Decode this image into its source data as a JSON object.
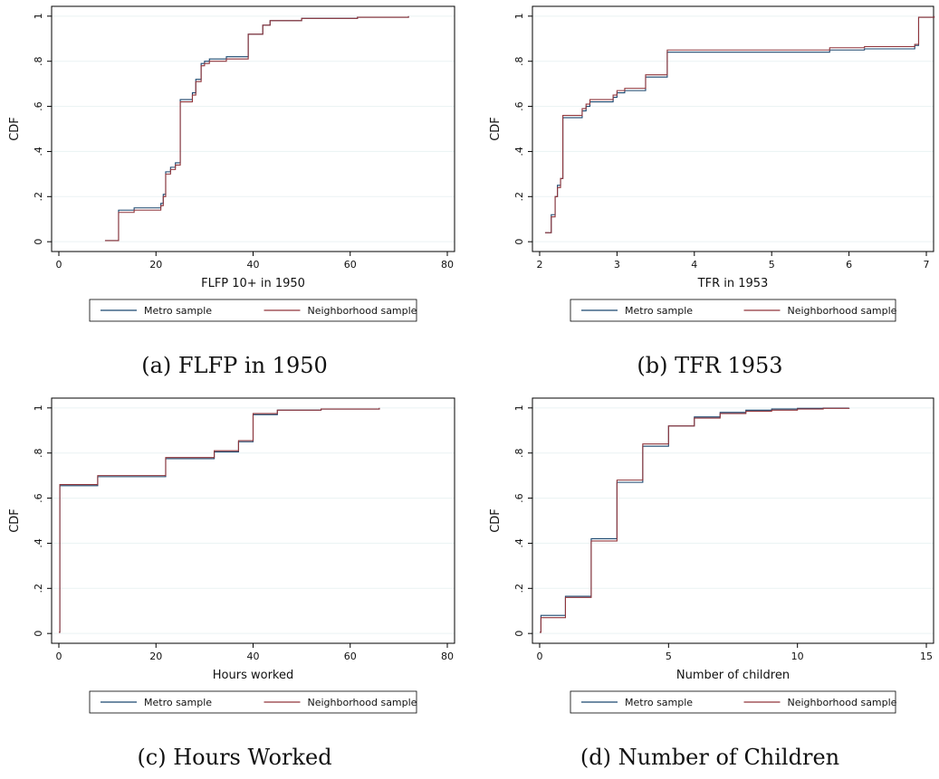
{
  "captions": [
    "(a) FLFP in 1950",
    "(b) TFR 1953",
    "(c) Hours Worked",
    "(d) Number of Children"
  ],
  "chart_data": [
    {
      "type": "line",
      "xlabel": "FLFP 10+ in 1950",
      "ylabel": "CDF",
      "xlim": [
        0,
        80
      ],
      "ylim": [
        0,
        1
      ],
      "xticks": [
        0,
        20,
        40,
        60,
        80
      ],
      "xticklabels": [
        "0",
        "20",
        "40",
        "60",
        "80"
      ],
      "yticks": [
        0,
        0.2,
        0.4,
        0.6,
        0.8,
        1
      ],
      "yticklabels": [
        "0",
        ".2",
        ".4",
        ".6",
        ".8",
        "1"
      ],
      "grid": true,
      "legend_position": "bottom",
      "series": [
        {
          "name": "Metro sample",
          "color": "#1a476f",
          "x": [
            9.5,
            12.3,
            12.3,
            15.5,
            21.0,
            21.5,
            22.0,
            23.0,
            24.0,
            24.5,
            25.0,
            25.5,
            27.5,
            28.2,
            29.3,
            30.0,
            31.0,
            34.5,
            39.0,
            40.5,
            42.0,
            43.5,
            50.0,
            61.5,
            72.0
          ],
          "y": [
            0.005,
            0.14,
            0.14,
            0.15,
            0.17,
            0.21,
            0.31,
            0.33,
            0.35,
            0.35,
            0.63,
            0.63,
            0.66,
            0.72,
            0.79,
            0.8,
            0.81,
            0.82,
            0.92,
            0.92,
            0.96,
            0.98,
            0.99,
            0.995,
            1.0
          ]
        },
        {
          "name": "Neighborhood sample",
          "color": "#90353b",
          "x": [
            9.5,
            12.3,
            12.3,
            15.5,
            21.0,
            21.5,
            22.0,
            23.0,
            24.0,
            24.5,
            25.0,
            25.5,
            27.5,
            28.2,
            29.3,
            30.0,
            31.0,
            34.5,
            39.0,
            40.5,
            42.0,
            43.5,
            50.0,
            61.5,
            72.0
          ],
          "y": [
            0.005,
            0.13,
            0.13,
            0.14,
            0.16,
            0.2,
            0.3,
            0.32,
            0.34,
            0.34,
            0.62,
            0.62,
            0.65,
            0.71,
            0.78,
            0.79,
            0.8,
            0.81,
            0.92,
            0.92,
            0.96,
            0.98,
            0.99,
            0.995,
            1.0
          ]
        }
      ]
    },
    {
      "type": "line",
      "xlabel": "TFR in 1953",
      "ylabel": "CDF",
      "xlim": [
        2,
        7
      ],
      "ylim": [
        0,
        1
      ],
      "xticks": [
        2,
        3,
        4,
        5,
        6,
        7
      ],
      "xticklabels": [
        "2",
        "3",
        "4",
        "5",
        "6",
        "7"
      ],
      "yticks": [
        0,
        0.2,
        0.4,
        0.6,
        0.8,
        1
      ],
      "yticklabels": [
        "0",
        ".2",
        ".4",
        ".6",
        ".8",
        "1"
      ],
      "grid": true,
      "legend_position": "bottom",
      "series": [
        {
          "name": "Metro sample",
          "color": "#1a476f",
          "x": [
            2.07,
            2.15,
            2.2,
            2.23,
            2.27,
            2.3,
            2.35,
            2.55,
            2.6,
            2.65,
            2.75,
            2.95,
            3.0,
            3.1,
            3.37,
            3.65,
            4.0,
            5.75,
            6.2,
            6.85,
            6.9,
            7.1
          ],
          "y": [
            0.04,
            0.12,
            0.2,
            0.25,
            0.28,
            0.55,
            0.55,
            0.58,
            0.6,
            0.62,
            0.62,
            0.64,
            0.66,
            0.67,
            0.73,
            0.84,
            0.84,
            0.85,
            0.855,
            0.87,
            0.995,
            1.0
          ]
        },
        {
          "name": "Neighborhood sample",
          "color": "#90353b",
          "x": [
            2.07,
            2.15,
            2.2,
            2.23,
            2.27,
            2.3,
            2.35,
            2.55,
            2.6,
            2.65,
            2.75,
            2.95,
            3.0,
            3.1,
            3.37,
            3.65,
            4.0,
            5.75,
            6.2,
            6.85,
            6.9,
            7.1
          ],
          "y": [
            0.04,
            0.11,
            0.2,
            0.24,
            0.28,
            0.56,
            0.56,
            0.59,
            0.61,
            0.63,
            0.63,
            0.65,
            0.67,
            0.68,
            0.74,
            0.85,
            0.85,
            0.86,
            0.865,
            0.875,
            0.995,
            1.0
          ]
        }
      ]
    },
    {
      "type": "line",
      "xlabel": "Hours worked",
      "ylabel": "CDF",
      "xlim": [
        0,
        80
      ],
      "ylim": [
        0,
        1
      ],
      "xticks": [
        0,
        20,
        40,
        60,
        80
      ],
      "xticklabels": [
        "0",
        "20",
        "40",
        "60",
        "80"
      ],
      "yticks": [
        0,
        0.2,
        0.4,
        0.6,
        0.8,
        1
      ],
      "yticklabels": [
        "0",
        ".2",
        ".4",
        ".6",
        ".8",
        "1"
      ],
      "grid": true,
      "legend_position": "bottom",
      "series": [
        {
          "name": "Metro sample",
          "color": "#1a476f",
          "x": [
            0,
            0.2,
            8,
            22,
            32,
            37,
            40,
            45,
            54,
            66
          ],
          "y": [
            0.005,
            0.655,
            0.695,
            0.775,
            0.805,
            0.85,
            0.97,
            0.99,
            0.995,
            1.0
          ]
        },
        {
          "name": "Neighborhood sample",
          "color": "#90353b",
          "x": [
            0,
            0.2,
            8,
            22,
            32,
            37,
            40,
            45,
            54,
            66
          ],
          "y": [
            0.005,
            0.66,
            0.7,
            0.78,
            0.81,
            0.855,
            0.975,
            0.99,
            0.995,
            1.0
          ]
        }
      ]
    },
    {
      "type": "line",
      "xlabel": "Number of children",
      "ylabel": "CDF",
      "xlim": [
        0,
        15
      ],
      "ylim": [
        0,
        1
      ],
      "xticks": [
        0,
        5,
        10,
        15
      ],
      "xticklabels": [
        "0",
        "5",
        "10",
        "15"
      ],
      "yticks": [
        0,
        0.2,
        0.4,
        0.6,
        0.8,
        1
      ],
      "yticklabels": [
        "0",
        ".2",
        ".4",
        ".6",
        ".8",
        "1"
      ],
      "grid": true,
      "legend_position": "bottom",
      "series": [
        {
          "name": "Metro sample",
          "color": "#1a476f",
          "x": [
            0,
            0.05,
            1,
            2,
            3,
            4,
            5,
            6,
            7,
            8,
            9,
            10,
            11,
            12
          ],
          "y": [
            0.005,
            0.08,
            0.165,
            0.42,
            0.67,
            0.83,
            0.92,
            0.96,
            0.98,
            0.99,
            0.995,
            0.998,
            0.999,
            1.0
          ]
        },
        {
          "name": "Neighborhood sample",
          "color": "#90353b",
          "x": [
            0,
            0.05,
            1,
            2,
            3,
            4,
            5,
            6,
            7,
            8,
            9,
            10,
            11,
            12
          ],
          "y": [
            0.005,
            0.07,
            0.16,
            0.41,
            0.68,
            0.84,
            0.92,
            0.955,
            0.975,
            0.985,
            0.99,
            0.995,
            0.998,
            1.0
          ]
        }
      ]
    }
  ]
}
